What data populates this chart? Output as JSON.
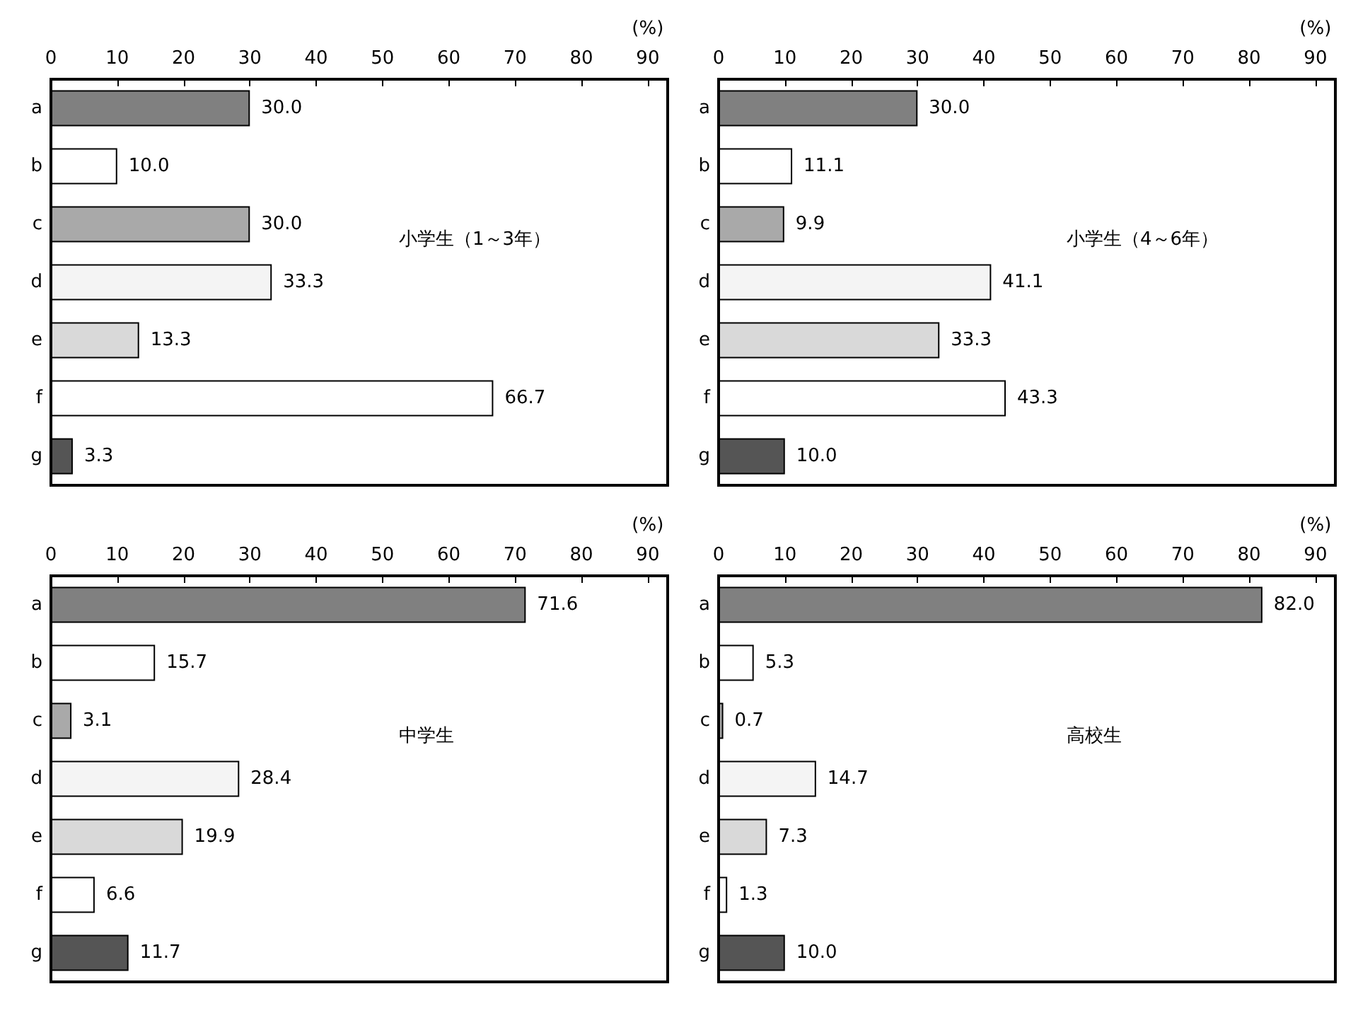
{
  "chart_data": [
    {
      "type": "bar",
      "orientation": "horizontal",
      "title": "小学生（1～3年）",
      "xlabel": "(%)",
      "categories": [
        "a",
        "b",
        "c",
        "d",
        "e",
        "f",
        "g"
      ],
      "values": [
        30.0,
        10.0,
        30.0,
        33.3,
        13.3,
        66.7,
        3.3
      ],
      "value_labels": [
        "30.0",
        "10.0",
        "30.0",
        "33.3",
        "13.3",
        "66.7",
        "3.3"
      ],
      "colors": [
        "#808080",
        "#ffffff",
        "#a9a9a9",
        "#f4f4f4",
        "#d9d9d9",
        "#ffffff",
        "#555555"
      ],
      "xlim": [
        0,
        93
      ],
      "xticks": [
        0,
        10,
        20,
        30,
        40,
        50,
        60,
        70,
        80,
        90
      ]
    },
    {
      "type": "bar",
      "orientation": "horizontal",
      "title": "小学生（4～6年）",
      "xlabel": "(%)",
      "categories": [
        "a",
        "b",
        "c",
        "d",
        "e",
        "f",
        "g"
      ],
      "values": [
        30.0,
        11.1,
        9.9,
        41.1,
        33.3,
        43.3,
        10.0
      ],
      "value_labels": [
        "30.0",
        "11.1",
        "9.9",
        "41.1",
        "33.3",
        "43.3",
        "10.0"
      ],
      "colors": [
        "#808080",
        "#ffffff",
        "#a9a9a9",
        "#f4f4f4",
        "#d9d9d9",
        "#ffffff",
        "#555555"
      ],
      "xlim": [
        0,
        93
      ],
      "xticks": [
        0,
        10,
        20,
        30,
        40,
        50,
        60,
        70,
        80,
        90
      ]
    },
    {
      "type": "bar",
      "orientation": "horizontal",
      "title": "中学生",
      "xlabel": "(%)",
      "categories": [
        "a",
        "b",
        "c",
        "d",
        "e",
        "f",
        "g"
      ],
      "values": [
        71.6,
        15.7,
        3.1,
        28.4,
        19.9,
        6.6,
        11.7
      ],
      "value_labels": [
        "71.6",
        "15.7",
        "3.1",
        "28.4",
        "19.9",
        "6.6",
        "11.7"
      ],
      "colors": [
        "#808080",
        "#ffffff",
        "#a9a9a9",
        "#f4f4f4",
        "#d9d9d9",
        "#ffffff",
        "#555555"
      ],
      "xlim": [
        0,
        93
      ],
      "xticks": [
        0,
        10,
        20,
        30,
        40,
        50,
        60,
        70,
        80,
        90
      ]
    },
    {
      "type": "bar",
      "orientation": "horizontal",
      "title": "高校生",
      "xlabel": "(%)",
      "categories": [
        "a",
        "b",
        "c",
        "d",
        "e",
        "f",
        "g"
      ],
      "values": [
        82.0,
        5.3,
        0.7,
        14.7,
        7.3,
        1.3,
        10.0
      ],
      "value_labels": [
        "82.0",
        "5.3",
        "0.7",
        "14.7",
        "7.3",
        "1.3",
        "10.0"
      ],
      "colors": [
        "#808080",
        "#ffffff",
        "#a9a9a9",
        "#f4f4f4",
        "#d9d9d9",
        "#ffffff",
        "#555555"
      ],
      "xlim": [
        0,
        93
      ],
      "xticks": [
        0,
        10,
        20,
        30,
        40,
        50,
        60,
        70,
        80,
        90
      ]
    }
  ]
}
